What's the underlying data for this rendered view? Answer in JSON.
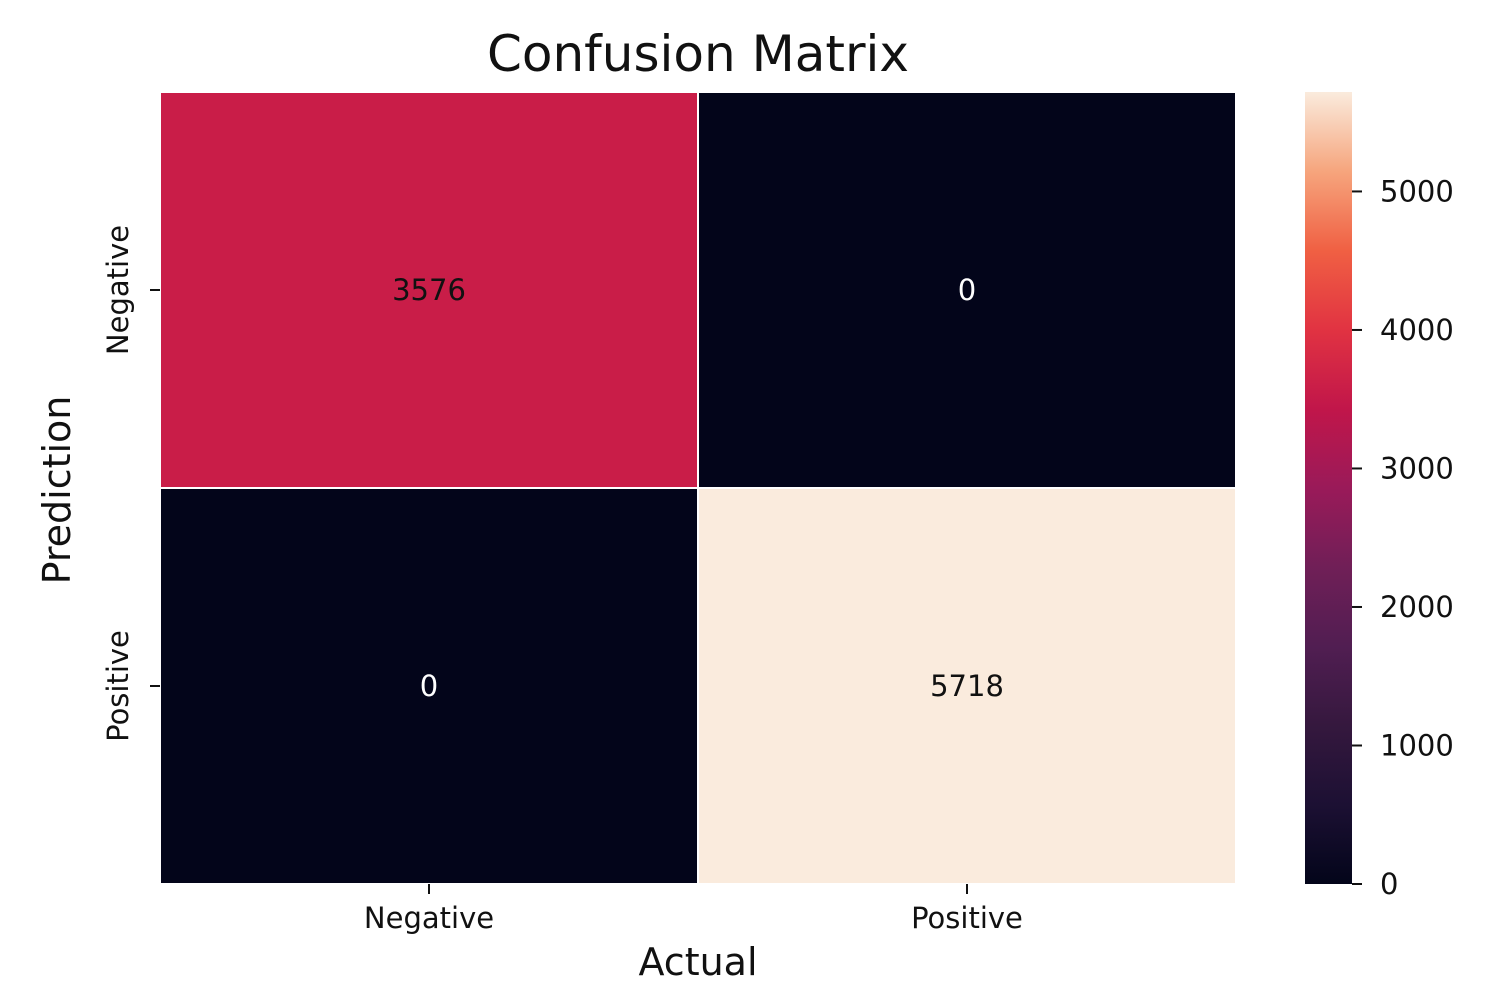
{
  "chart_data": {
    "type": "heatmap",
    "title": "Confusion Matrix",
    "xlabel": "Actual",
    "ylabel": "Prediction",
    "x_categories": [
      "Negative",
      "Positive"
    ],
    "y_categories": [
      "Negative",
      "Positive"
    ],
    "values": [
      [
        3576,
        0
      ],
      [
        0,
        5718
      ]
    ],
    "colormap": "rocket",
    "colorbar": {
      "min": 0,
      "max": 5718,
      "ticks": [
        0,
        1000,
        2000,
        3000,
        4000,
        5000
      ],
      "tick_labels": [
        "0",
        "1000",
        "2000",
        "3000",
        "4000",
        "5000"
      ]
    },
    "colors": {
      "low": "#03051a",
      "high": "#faebdd",
      "cell_3576": "#e84d3f",
      "annotation_light": "#ffffff",
      "annotation_dark": "#111111"
    },
    "grid": false,
    "legend": "colorbar-right"
  }
}
